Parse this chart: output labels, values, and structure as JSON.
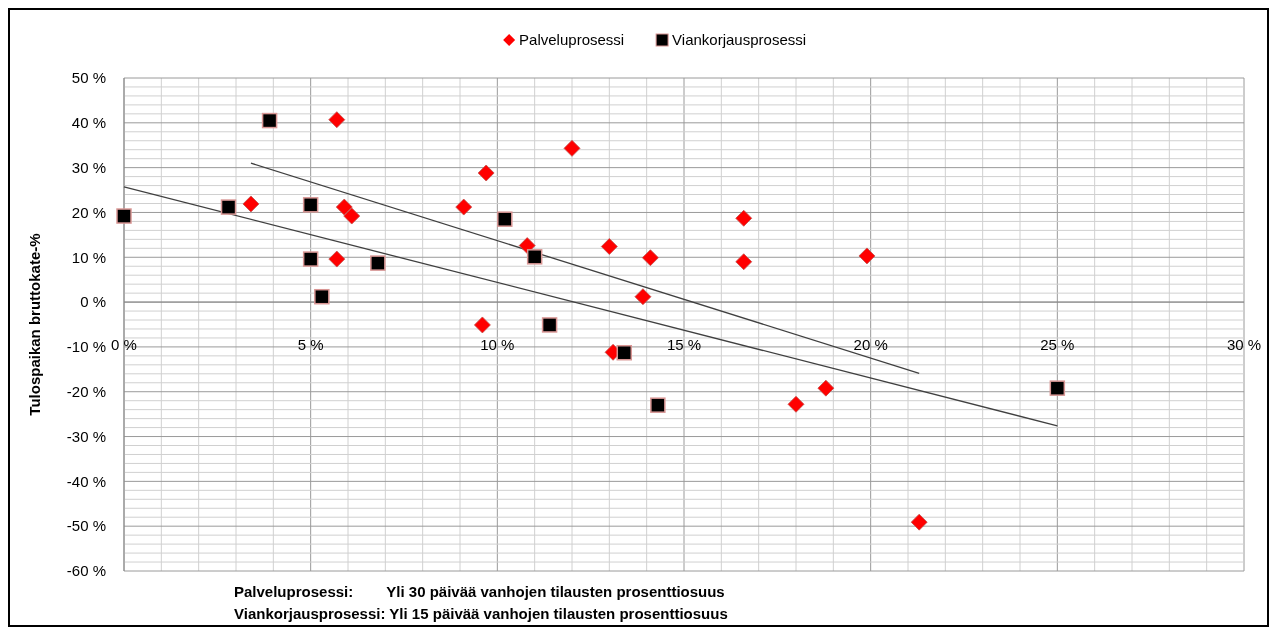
{
  "chart_data": {
    "type": "scatter",
    "ylabel": "Tulospaikan bruttokate-%",
    "xlim": [
      0,
      30
    ],
    "ylim": [
      -60,
      50
    ],
    "xticks": [
      {
        "value": 0,
        "label": "0 %"
      },
      {
        "value": 1,
        "label": null
      },
      {
        "value": 2,
        "label": null
      },
      {
        "value": 3,
        "label": null
      },
      {
        "value": 4,
        "label": null
      },
      {
        "value": 5,
        "label": "5 %"
      },
      {
        "value": 6,
        "label": null
      },
      {
        "value": 7,
        "label": null
      },
      {
        "value": 8,
        "label": null
      },
      {
        "value": 9,
        "label": null
      },
      {
        "value": 10,
        "label": "10 %"
      },
      {
        "value": 11,
        "label": null
      },
      {
        "value": 12,
        "label": null
      },
      {
        "value": 13,
        "label": null
      },
      {
        "value": 14,
        "label": null
      },
      {
        "value": 15,
        "label": "15 %"
      },
      {
        "value": 16,
        "label": null
      },
      {
        "value": 17,
        "label": null
      },
      {
        "value": 18,
        "label": null
      },
      {
        "value": 19,
        "label": null
      },
      {
        "value": 20,
        "label": "20 %"
      },
      {
        "value": 21,
        "label": null
      },
      {
        "value": 22,
        "label": null
      },
      {
        "value": 23,
        "label": null
      },
      {
        "value": 24,
        "label": null
      },
      {
        "value": 25,
        "label": "25 %"
      },
      {
        "value": 26,
        "label": null
      },
      {
        "value": 27,
        "label": null
      },
      {
        "value": 28,
        "label": null
      },
      {
        "value": 29,
        "label": null
      },
      {
        "value": 30,
        "label": "30 %"
      }
    ],
    "yticks": [
      {
        "value": -60,
        "label": "-60 %"
      },
      {
        "value": -58,
        "label": null
      },
      {
        "value": -56,
        "label": null
      },
      {
        "value": -54,
        "label": null
      },
      {
        "value": -52,
        "label": null
      },
      {
        "value": -50,
        "label": "-50 %"
      },
      {
        "value": -48,
        "label": null
      },
      {
        "value": -46,
        "label": null
      },
      {
        "value": -44,
        "label": null
      },
      {
        "value": -42,
        "label": null
      },
      {
        "value": -40,
        "label": "-40 %"
      },
      {
        "value": -38,
        "label": null
      },
      {
        "value": -36,
        "label": null
      },
      {
        "value": -34,
        "label": null
      },
      {
        "value": -32,
        "label": null
      },
      {
        "value": -30,
        "label": "-30 %"
      },
      {
        "value": -28,
        "label": null
      },
      {
        "value": -26,
        "label": null
      },
      {
        "value": -24,
        "label": null
      },
      {
        "value": -22,
        "label": null
      },
      {
        "value": -20,
        "label": "-20 %"
      },
      {
        "value": -18,
        "label": null
      },
      {
        "value": -16,
        "label": null
      },
      {
        "value": -14,
        "label": null
      },
      {
        "value": -12,
        "label": null
      },
      {
        "value": -10,
        "label": "-10 %"
      },
      {
        "value": -8,
        "label": null
      },
      {
        "value": -6,
        "label": null
      },
      {
        "value": -4,
        "label": null
      },
      {
        "value": -2,
        "label": null
      },
      {
        "value": 0,
        "label": "0 %"
      },
      {
        "value": 2,
        "label": null
      },
      {
        "value": 4,
        "label": null
      },
      {
        "value": 6,
        "label": null
      },
      {
        "value": 8,
        "label": null
      },
      {
        "value": 10,
        "label": "10 %"
      },
      {
        "value": 12,
        "label": null
      },
      {
        "value": 14,
        "label": null
      },
      {
        "value": 16,
        "label": null
      },
      {
        "value": 18,
        "label": null
      },
      {
        "value": 20,
        "label": "20 %"
      },
      {
        "value": 22,
        "label": null
      },
      {
        "value": 24,
        "label": null
      },
      {
        "value": 26,
        "label": null
      },
      {
        "value": 28,
        "label": null
      },
      {
        "value": 30,
        "label": "30 %"
      },
      {
        "value": 32,
        "label": null
      },
      {
        "value": 34,
        "label": null
      },
      {
        "value": 36,
        "label": null
      },
      {
        "value": 38,
        "label": null
      },
      {
        "value": 40,
        "label": "40 %"
      },
      {
        "value": 42,
        "label": null
      },
      {
        "value": 44,
        "label": null
      },
      {
        "value": 46,
        "label": null
      },
      {
        "value": 48,
        "label": null
      },
      {
        "value": 50,
        "label": "50 %"
      }
    ],
    "grid": true,
    "legend": "top",
    "series": [
      {
        "name": "Palveluprosessi",
        "color": "#ff0000",
        "marker": "diamond",
        "x": [
          3.4,
          5.7,
          5.9,
          6.1,
          5.7,
          9.1,
          9.7,
          12.0,
          10.8,
          9.6,
          13.0,
          14.1,
          13.9,
          13.1,
          16.6,
          16.6,
          19.9,
          18.0,
          18.8,
          21.3
        ],
        "values": [
          21.9,
          40.7,
          21.2,
          19.2,
          9.6,
          21.2,
          28.8,
          34.3,
          12.6,
          -5.1,
          12.4,
          9.9,
          1.2,
          -11.2,
          18.7,
          9.0,
          10.3,
          -22.8,
          -19.2,
          -49.1
        ]
      },
      {
        "name": "Viankorjausprosessi",
        "color": "#000000",
        "marker": "square",
        "x": [
          0,
          2.8,
          3.9,
          5.0,
          5.0,
          6.8,
          5.3,
          10.2,
          11.0,
          11.4,
          13.4,
          14.3,
          25.0
        ],
        "values": [
          19.2,
          21.2,
          40.5,
          21.7,
          9.6,
          8.7,
          1.2,
          18.5,
          10.1,
          -5.1,
          -11.3,
          -23.0,
          -19.2
        ]
      },
      {
        "type": "line",
        "color": "#404040",
        "x": [
          3.4,
          21.3
        ],
        "values": [
          31.0,
          -15.9
        ]
      },
      {
        "type": "line",
        "color": "#404040",
        "x": [
          0,
          25
        ],
        "values": [
          25.7,
          -27.6
        ]
      }
    ],
    "annotations": [
      "Palveluprosessi:        Yli 30 päivää vanhojen tilausten prosenttiosuus",
      "Viankorjausprosessi: Yli 15 päivää vanhojen tilausten prosenttiosuus"
    ]
  }
}
